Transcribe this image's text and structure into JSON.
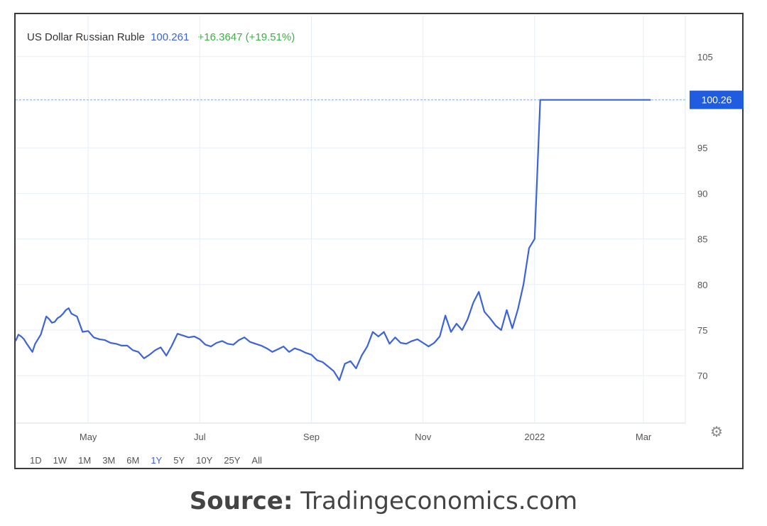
{
  "header": {
    "title": "US Dollar Russian Ruble",
    "price": "100.261",
    "change": "+16.3647 (+19.51%)"
  },
  "source": {
    "label": "Source:",
    "text": "Tradingeconomics.com"
  },
  "ranges": [
    {
      "label": "1D",
      "active": false
    },
    {
      "label": "1W",
      "active": false
    },
    {
      "label": "1M",
      "active": false
    },
    {
      "label": "3M",
      "active": false
    },
    {
      "label": "6M",
      "active": false
    },
    {
      "label": "1Y",
      "active": true
    },
    {
      "label": "5Y",
      "active": false
    },
    {
      "label": "10Y",
      "active": false
    },
    {
      "label": "25Y",
      "active": false
    },
    {
      "label": "All",
      "active": false
    }
  ],
  "colors": {
    "line": "#3d63d8",
    "current_label_bg": "#1f5ce0",
    "price": "#3d63d8",
    "change": "#3cb043",
    "grid": "#e6eef3"
  },
  "icons": {
    "settings": "gear-icon"
  },
  "chart_data": {
    "type": "line",
    "title": "US Dollar Russian Ruble",
    "xlabel": "",
    "ylabel": "",
    "x_ticks": [
      "May",
      "Jul",
      "Sep",
      "Nov",
      "2022",
      "Mar"
    ],
    "x_tick_positions": [
      1.3,
      3.3,
      5.3,
      7.3,
      9.3,
      11.25
    ],
    "y_ticks": [
      70,
      75,
      80,
      85,
      90,
      95,
      105
    ],
    "ylim": [
      64.8,
      109.5
    ],
    "xlim": [
      0,
      12
    ],
    "current_value_label": "100.26",
    "current_value": 100.26,
    "grid": true,
    "series": [
      {
        "x": [
          0.0,
          0.05,
          0.1,
          0.15,
          0.2,
          0.3,
          0.35,
          0.4,
          0.45,
          0.5,
          0.55,
          0.6,
          0.65,
          0.7,
          0.75,
          0.8,
          0.85,
          0.9,
          0.95,
          1.0,
          1.1,
          1.2,
          1.3,
          1.4,
          1.5,
          1.6,
          1.7,
          1.8,
          1.9,
          2.0,
          2.1,
          2.2,
          2.3,
          2.4,
          2.5,
          2.6,
          2.7,
          2.8,
          2.9,
          3.0,
          3.1,
          3.2,
          3.3,
          3.4,
          3.5,
          3.6,
          3.7,
          3.8,
          3.9,
          4.0,
          4.1,
          4.2,
          4.3,
          4.4,
          4.5,
          4.6,
          4.7,
          4.8,
          4.9,
          5.0,
          5.1,
          5.2,
          5.3,
          5.4,
          5.5,
          5.6,
          5.7,
          5.8,
          5.9,
          6.0,
          6.1,
          6.2,
          6.3,
          6.4,
          6.5,
          6.6,
          6.7,
          6.8,
          6.9,
          7.0,
          7.1,
          7.2,
          7.3,
          7.4,
          7.5,
          7.6,
          7.7,
          7.8,
          7.9,
          8.0,
          8.1,
          8.2,
          8.3,
          8.4,
          8.5,
          8.6,
          8.7,
          8.8,
          8.9,
          9.0,
          9.1,
          9.2,
          9.3,
          9.4,
          9.5,
          9.6,
          9.7,
          9.8,
          9.9,
          10.0,
          10.1,
          10.2,
          10.3,
          10.4,
          10.5,
          10.6,
          10.7,
          10.8,
          10.9,
          11.0,
          11.1,
          11.2,
          11.25,
          11.3,
          11.35,
          11.38
        ],
        "y": [
          73.8,
          74.5,
          74.3,
          74.0,
          73.5,
          72.6,
          73.5,
          74.0,
          74.5,
          75.5,
          76.5,
          76.2,
          75.8,
          75.9,
          76.3,
          76.5,
          76.8,
          77.2,
          77.4,
          76.8,
          76.5,
          74.8,
          74.9,
          74.2,
          74.0,
          73.9,
          73.6,
          73.5,
          73.3,
          73.3,
          72.8,
          72.6,
          71.9,
          72.3,
          72.8,
          73.1,
          72.2,
          73.3,
          74.6,
          74.4,
          74.2,
          74.3,
          74.0,
          73.4,
          73.2,
          73.6,
          73.8,
          73.5,
          73.4,
          73.9,
          74.2,
          73.7,
          73.5,
          73.3,
          73.0,
          72.6,
          72.9,
          73.2,
          72.6,
          73.0,
          72.8,
          72.5,
          72.3,
          71.7,
          71.5,
          71.0,
          70.5,
          69.5,
          71.3,
          71.6,
          70.8,
          72.2,
          73.2,
          74.8,
          74.3,
          74.8,
          73.5,
          74.2,
          73.6,
          73.5,
          73.8,
          74.0,
          73.6,
          73.2,
          73.6,
          74.3,
          76.6,
          74.8,
          75.7,
          75.0,
          76.2,
          78.0,
          79.2,
          77.0,
          76.3,
          75.5,
          75.0,
          77.2,
          75.2,
          77.3,
          80.0,
          84.0,
          85.0,
          100.26,
          100.26,
          100.26,
          100.26,
          100.26,
          100.26,
          100.26,
          100.26,
          100.26,
          100.26,
          100.26,
          100.26,
          100.26,
          100.26,
          100.26,
          100.26,
          100.26,
          100.26,
          100.26,
          100.26,
          100.26,
          100.26,
          100.26
        ]
      }
    ]
  }
}
